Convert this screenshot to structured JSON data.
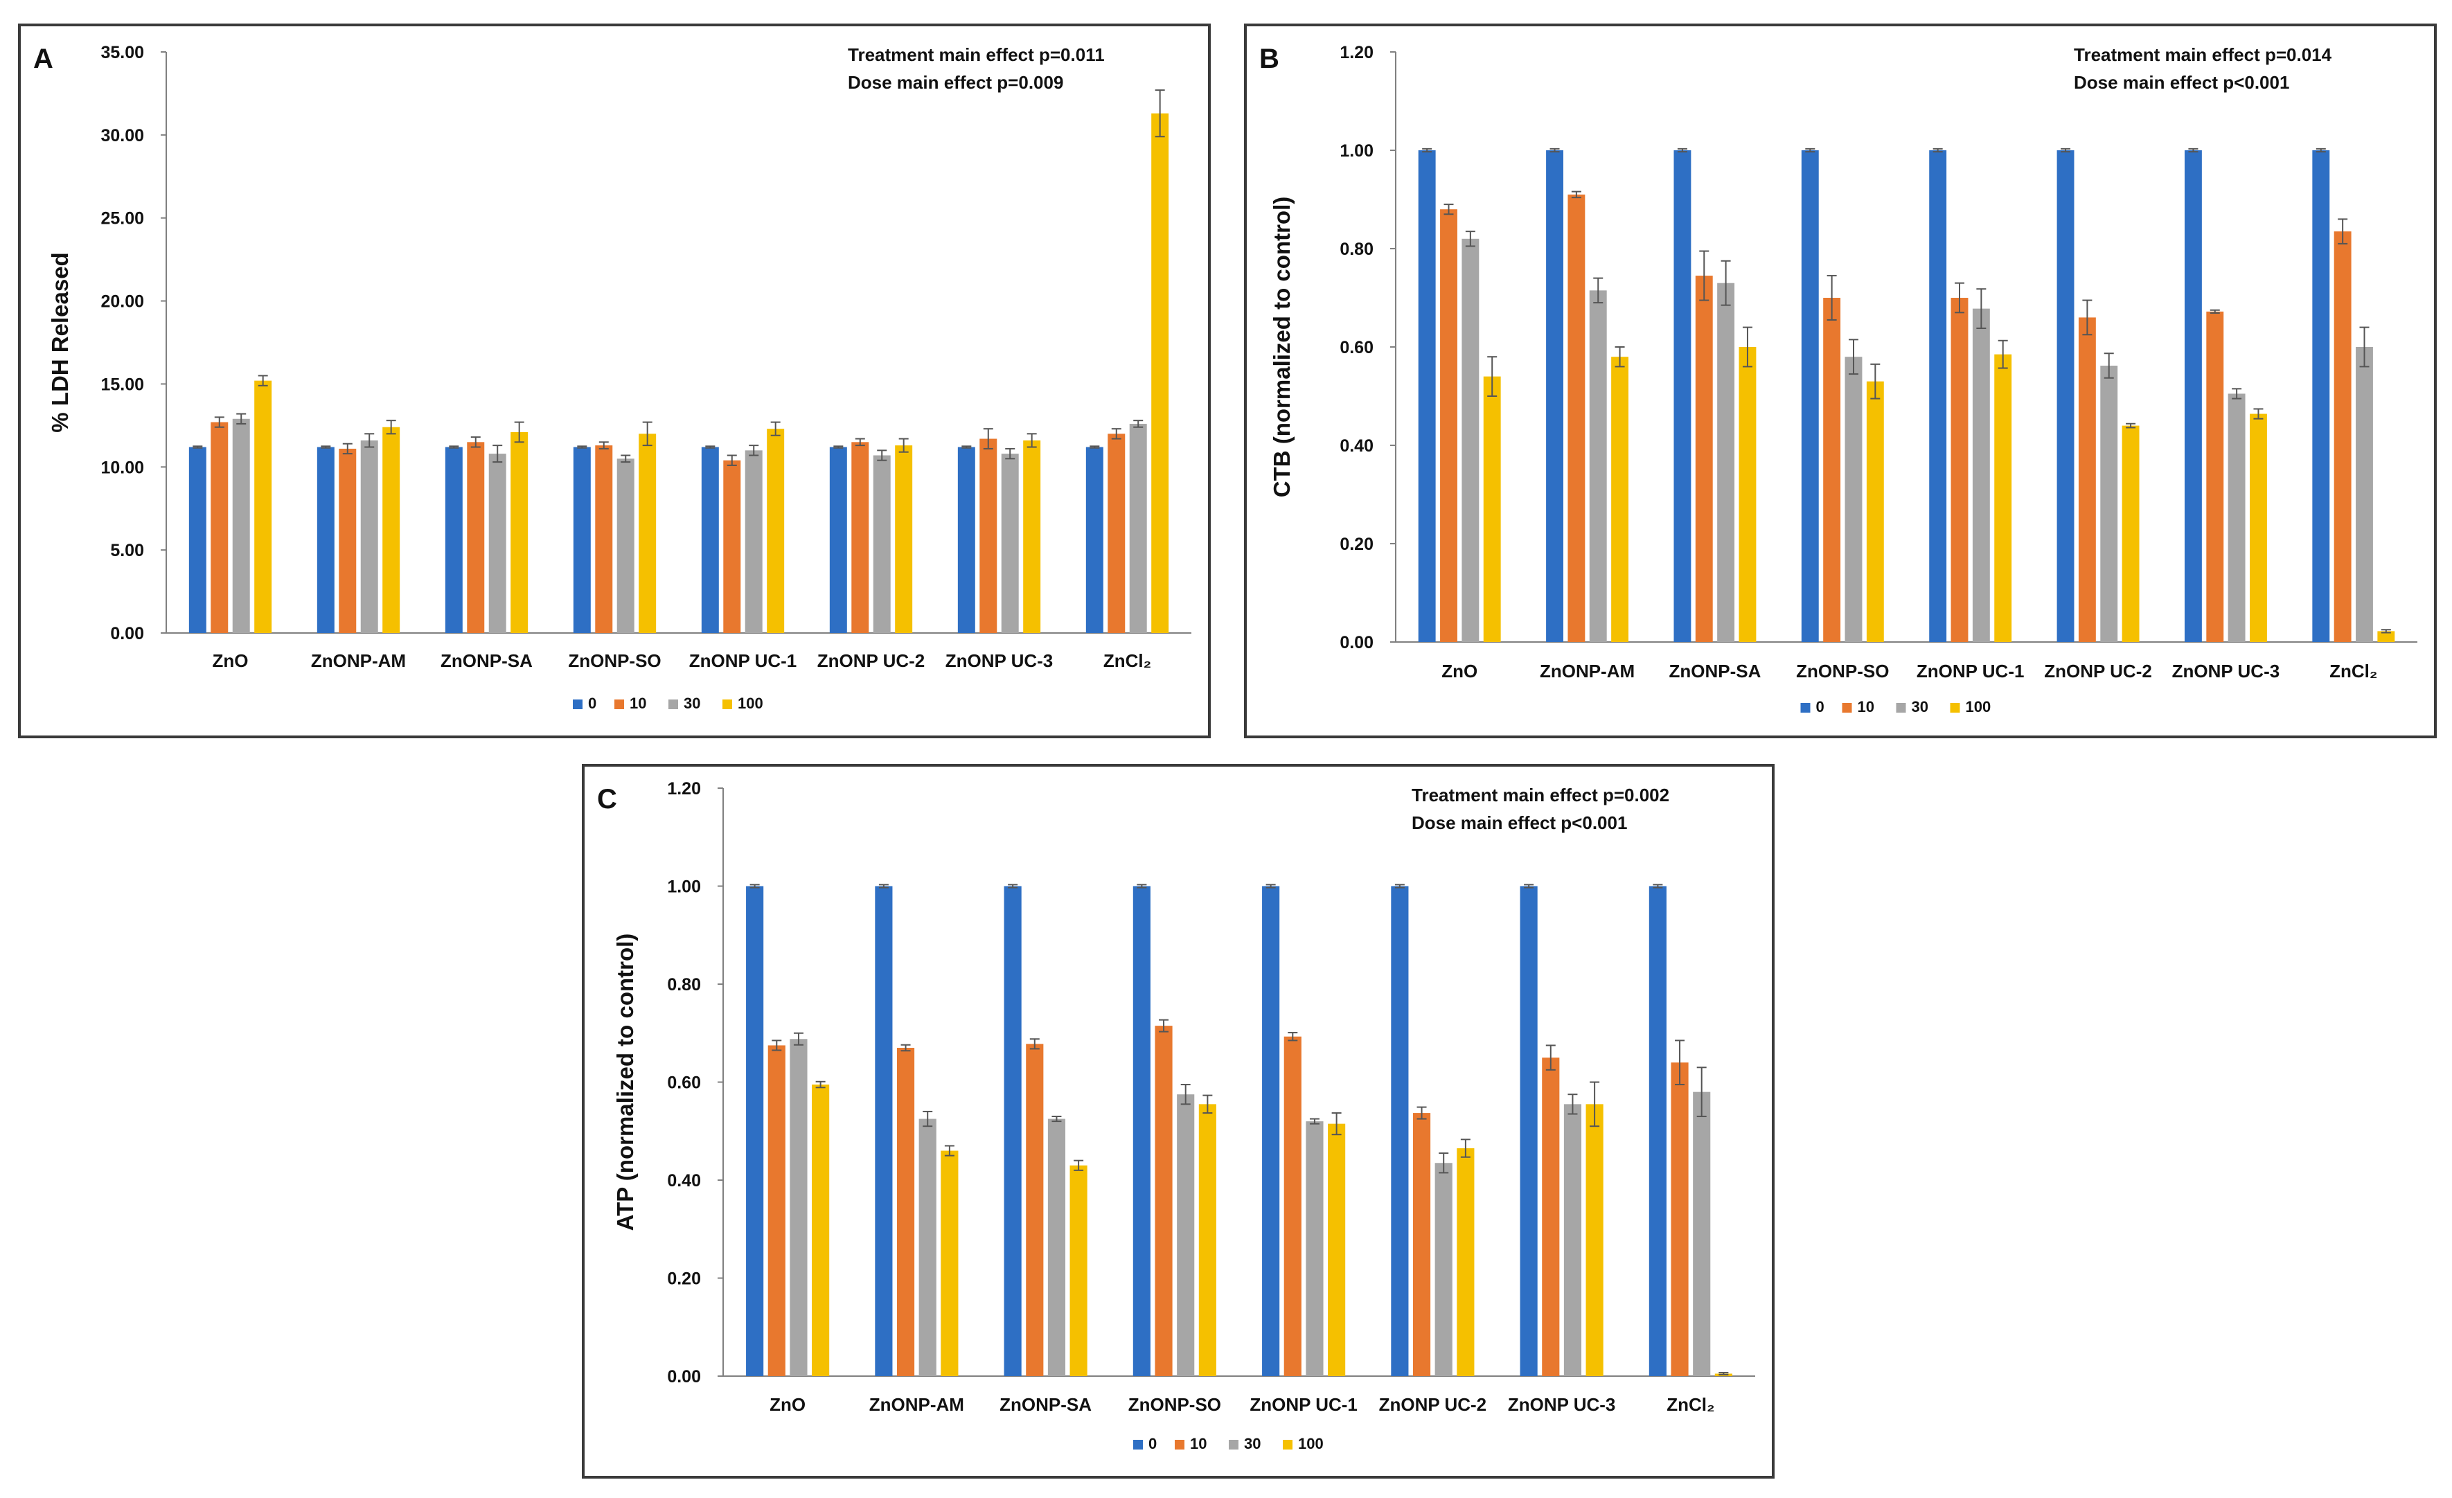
{
  "colors": {
    "s0": "#2e6fc4",
    "s10": "#e8782e",
    "s30": "#a6a6a6",
    "s100": "#f5c000",
    "axis": "#808080",
    "err": "#555555"
  },
  "chart_data": [
    {
      "type": "bar",
      "panel_label": "A",
      "ylabel": "% LDH Released",
      "yticks": [
        "0.00",
        "5.00",
        "10.00",
        "15.00",
        "20.00",
        "25.00",
        "30.00",
        "35.00"
      ],
      "ylim": [
        0,
        35
      ],
      "annotations": [
        "Treatment main effect p=0.011",
        "Dose main effect p=0.009"
      ],
      "categories": [
        "ZnO",
        "ZnONP-AM",
        "ZnONP-SA",
        "ZnONP-SO",
        "ZnONP UC-1",
        "ZnONP UC-2",
        "ZnONP UC-3",
        "ZnCl₂"
      ],
      "legend": [
        "0",
        "10",
        "30",
        "100"
      ],
      "series": [
        {
          "name": "0",
          "values": [
            11.2,
            11.2,
            11.2,
            11.2,
            11.2,
            11.2,
            11.2,
            11.2
          ],
          "errors": [
            0.05,
            0.05,
            0.05,
            0.05,
            0.05,
            0.05,
            0.05,
            0.05
          ]
        },
        {
          "name": "10",
          "values": [
            12.7,
            11.1,
            11.5,
            11.3,
            10.4,
            11.5,
            11.7,
            12.0
          ],
          "errors": [
            0.3,
            0.3,
            0.3,
            0.2,
            0.3,
            0.2,
            0.6,
            0.3
          ]
        },
        {
          "name": "30",
          "values": [
            12.9,
            11.6,
            10.8,
            10.5,
            11.0,
            10.7,
            10.8,
            12.6
          ],
          "errors": [
            0.3,
            0.4,
            0.5,
            0.2,
            0.3,
            0.3,
            0.3,
            0.2
          ]
        },
        {
          "name": "100",
          "values": [
            15.2,
            12.4,
            12.1,
            12.0,
            12.3,
            11.3,
            11.6,
            31.3
          ],
          "errors": [
            0.3,
            0.4,
            0.6,
            0.7,
            0.4,
            0.4,
            0.4,
            1.4
          ]
        }
      ]
    },
    {
      "type": "bar",
      "panel_label": "B",
      "ylabel": "CTB (normalized to control)",
      "yticks": [
        "0.00",
        "0.20",
        "0.40",
        "0.60",
        "0.80",
        "1.00",
        "1.20"
      ],
      "ylim": [
        0,
        1.2
      ],
      "annotations": [
        "Treatment main effect p=0.014",
        "Dose main effect p<0.001"
      ],
      "categories": [
        "ZnO",
        "ZnONP-AM",
        "ZnONP-SA",
        "ZnONP-SO",
        "ZnONP UC-1",
        "ZnONP UC-2",
        "ZnONP UC-3",
        "ZnCl₂"
      ],
      "legend": [
        "0",
        "10",
        "30",
        "100"
      ],
      "series": [
        {
          "name": "0",
          "values": [
            1.0,
            1.0,
            1.0,
            1.0,
            1.0,
            1.0,
            1.0,
            1.0
          ],
          "errors": [
            0.003,
            0.003,
            0.003,
            0.003,
            0.003,
            0.003,
            0.003,
            0.003
          ]
        },
        {
          "name": "10",
          "values": [
            0.88,
            0.91,
            0.745,
            0.7,
            0.7,
            0.66,
            0.672,
            0.835
          ],
          "errors": [
            0.01,
            0.006,
            0.05,
            0.045,
            0.03,
            0.035,
            0.003,
            0.025
          ]
        },
        {
          "name": "30",
          "values": [
            0.82,
            0.715,
            0.73,
            0.58,
            0.678,
            0.562,
            0.505,
            0.6
          ],
          "errors": [
            0.015,
            0.025,
            0.045,
            0.035,
            0.04,
            0.025,
            0.01,
            0.04
          ]
        },
        {
          "name": "100",
          "values": [
            0.54,
            0.58,
            0.6,
            0.53,
            0.585,
            0.44,
            0.464,
            0.022
          ],
          "errors": [
            0.04,
            0.02,
            0.04,
            0.035,
            0.028,
            0.004,
            0.01,
            0.003
          ]
        }
      ]
    },
    {
      "type": "bar",
      "panel_label": "C",
      "ylabel": "ATP (normalized to control)",
      "yticks": [
        "0.00",
        "0.20",
        "0.40",
        "0.60",
        "0.80",
        "1.00",
        "1.20"
      ],
      "ylim": [
        0,
        1.2
      ],
      "annotations": [
        "Treatment main effect p=0.002",
        "Dose main effect p<0.001"
      ],
      "categories": [
        "ZnO",
        "ZnONP-AM",
        "ZnONP-SA",
        "ZnONP-SO",
        "ZnONP UC-1",
        "ZnONP UC-2",
        "ZnONP UC-3",
        "ZnCl₂"
      ],
      "legend": [
        "0",
        "10",
        "30",
        "100"
      ],
      "series": [
        {
          "name": "0",
          "values": [
            1.0,
            1.0,
            1.0,
            1.0,
            1.0,
            1.0,
            1.0,
            1.0
          ],
          "errors": [
            0.003,
            0.003,
            0.003,
            0.003,
            0.003,
            0.003,
            0.003,
            0.003
          ]
        },
        {
          "name": "10",
          "values": [
            0.675,
            0.67,
            0.678,
            0.715,
            0.693,
            0.537,
            0.65,
            0.64
          ],
          "errors": [
            0.01,
            0.006,
            0.01,
            0.012,
            0.008,
            0.012,
            0.025,
            0.045
          ]
        },
        {
          "name": "30",
          "values": [
            0.688,
            0.525,
            0.525,
            0.575,
            0.52,
            0.435,
            0.555,
            0.58
          ],
          "errors": [
            0.012,
            0.015,
            0.005,
            0.02,
            0.005,
            0.02,
            0.02,
            0.05
          ]
        },
        {
          "name": "100",
          "values": [
            0.595,
            0.46,
            0.43,
            0.555,
            0.515,
            0.465,
            0.555,
            0.005
          ],
          "errors": [
            0.006,
            0.01,
            0.01,
            0.018,
            0.022,
            0.018,
            0.045,
            0.002
          ]
        }
      ]
    }
  ]
}
